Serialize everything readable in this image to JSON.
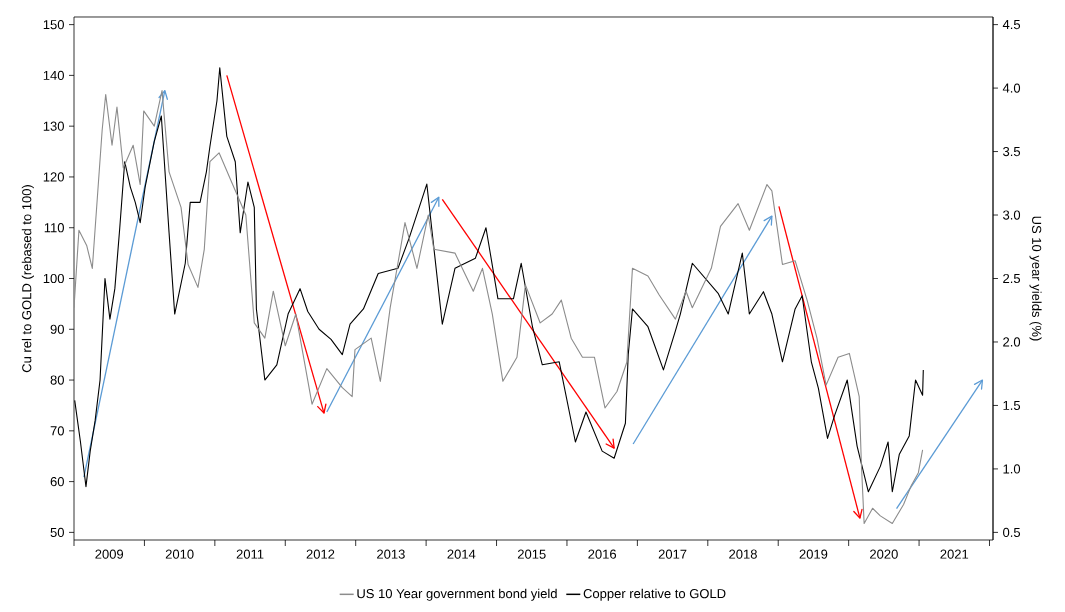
{
  "chart_data": {
    "type": "line",
    "xlabel": null,
    "ylabel": "Cu rel to GOLD (rebased to 100)",
    "y2label": "US 10 year yields (%)",
    "legend": "bottom",
    "xlim": [
      2009,
      2022.05
    ],
    "xticks": [
      {
        "value": 2009,
        "label": null
      },
      {
        "value": 2009.5,
        "label": "2009"
      },
      {
        "value": 2010,
        "label": null
      },
      {
        "value": 2010.5,
        "label": "2010"
      },
      {
        "value": 2011,
        "label": null
      },
      {
        "value": 2011.5,
        "label": "2011"
      },
      {
        "value": 2012,
        "label": null
      },
      {
        "value": 2012.5,
        "label": "2012"
      },
      {
        "value": 2013,
        "label": null
      },
      {
        "value": 2013.5,
        "label": "2013"
      },
      {
        "value": 2014,
        "label": null
      },
      {
        "value": 2014.5,
        "label": "2014"
      },
      {
        "value": 2015,
        "label": null
      },
      {
        "value": 2015.5,
        "label": "2015"
      },
      {
        "value": 2016,
        "label": null
      },
      {
        "value": 2016.5,
        "label": "2016"
      },
      {
        "value": 2017,
        "label": null
      },
      {
        "value": 2017.5,
        "label": "2017"
      },
      {
        "value": 2018,
        "label": null
      },
      {
        "value": 2018.5,
        "label": "2018"
      },
      {
        "value": 2019,
        "label": null
      },
      {
        "value": 2019.5,
        "label": "2019"
      },
      {
        "value": 2020,
        "label": null
      },
      {
        "value": 2020.5,
        "label": "2020"
      },
      {
        "value": 2021,
        "label": null
      },
      {
        "value": 2021.5,
        "label": "2021"
      },
      {
        "value": 2022,
        "label": null
      }
    ],
    "ylim": [
      48.5,
      151.5
    ],
    "yticks": [
      50,
      60,
      70,
      80,
      90,
      100,
      110,
      120,
      130,
      140,
      150
    ],
    "y2lim": [
      0.44,
      4.56
    ],
    "y2ticks": [
      0.5,
      {
        "value": 1,
        "label": "1.0"
      },
      1.5,
      {
        "value": 2,
        "label": "2.0"
      },
      2.5,
      {
        "value": 3,
        "label": "3.0"
      },
      3.5,
      {
        "value": 4,
        "label": "4.0"
      },
      4.5
    ],
    "series": [
      {
        "name": "US 10 Year government bond yield",
        "color": "#8c8c8c",
        "axis": "y2",
        "x": [
          2009.0,
          2009.07,
          2009.18,
          2009.26,
          2009.4,
          2009.45,
          2009.54,
          2009.61,
          2009.7,
          2009.84,
          2009.94,
          2009.99,
          2010.14,
          2010.25,
          2010.35,
          2010.52,
          2010.62,
          2010.76,
          2010.85,
          2010.93,
          2011.06,
          2011.23,
          2011.44,
          2011.56,
          2011.71,
          2011.83,
          2012.0,
          2012.15,
          2012.38,
          2012.59,
          2012.81,
          2012.95,
          2012.99,
          2013.22,
          2013.35,
          2013.49,
          2013.7,
          2013.87,
          2014.03,
          2014.11,
          2014.41,
          2014.67,
          2014.8,
          2014.94,
          2015.09,
          2015.29,
          2015.41,
          2015.62,
          2015.79,
          2015.92,
          2016.06,
          2016.22,
          2016.39,
          2016.54,
          2016.71,
          2016.85,
          2016.93,
          2017.15,
          2017.31,
          2017.54,
          2017.69,
          2017.78,
          2018.05,
          2018.18,
          2018.43,
          2018.59,
          2018.84,
          2018.91,
          2019.06,
          2019.24,
          2019.41,
          2019.55,
          2019.68,
          2019.85,
          2020.01,
          2020.15,
          2020.18,
          2020.22,
          2020.34,
          2020.45,
          2020.62,
          2020.78,
          2020.89,
          2020.99,
          2021.05
        ],
        "values": [
          2.27,
          2.88,
          2.76,
          2.58,
          3.67,
          3.95,
          3.55,
          3.85,
          3.37,
          3.55,
          3.24,
          3.82,
          3.7,
          3.98,
          3.34,
          3.06,
          2.61,
          2.43,
          2.73,
          3.42,
          3.49,
          3.27,
          3.0,
          2.15,
          2.03,
          2.4,
          1.97,
          2.22,
          1.51,
          1.79,
          1.64,
          1.57,
          1.94,
          2.03,
          1.69,
          2.27,
          2.94,
          2.58,
          3.0,
          2.73,
          2.7,
          2.4,
          2.58,
          2.22,
          1.69,
          1.88,
          2.45,
          2.15,
          2.22,
          2.33,
          2.03,
          1.88,
          1.88,
          1.48,
          1.61,
          1.84,
          2.58,
          2.52,
          2.37,
          2.18,
          2.4,
          2.27,
          2.58,
          2.91,
          3.09,
          2.88,
          3.24,
          3.19,
          2.61,
          2.64,
          2.33,
          2.03,
          1.66,
          1.88,
          1.91,
          1.57,
          1.05,
          0.57,
          0.69,
          0.63,
          0.57,
          0.72,
          0.87,
          0.97,
          1.15
        ]
      },
      {
        "name": "Copper relative to GOLD",
        "color": "#000000",
        "x": [
          2009.01,
          2009.09,
          2009.17,
          2009.23,
          2009.3,
          2009.37,
          2009.44,
          2009.51,
          2009.58,
          2009.65,
          2009.72,
          2009.8,
          2009.87,
          2009.94,
          2010.01,
          2010.14,
          2010.24,
          2010.35,
          2010.43,
          2010.58,
          2010.65,
          2010.79,
          2010.88,
          2010.93,
          2011.03,
          2011.07,
          2011.17,
          2011.29,
          2011.36,
          2011.47,
          2011.56,
          2011.59,
          2011.71,
          2011.88,
          2012.04,
          2012.21,
          2012.32,
          2012.48,
          2012.65,
          2012.81,
          2012.92,
          2013.11,
          2013.32,
          2013.6,
          2013.76,
          2014.01,
          2014.23,
          2014.41,
          2014.7,
          2014.85,
          2015.02,
          2015.24,
          2015.35,
          2015.51,
          2015.65,
          2015.89,
          2016.12,
          2016.27,
          2016.5,
          2016.67,
          2016.83,
          2016.87,
          2016.93,
          2017.15,
          2017.37,
          2017.54,
          2017.61,
          2017.78,
          2018.15,
          2018.29,
          2018.49,
          2018.59,
          2018.79,
          2018.91,
          2019.06,
          2019.24,
          2019.34,
          2019.47,
          2019.57,
          2019.7,
          2019.8,
          2019.98,
          2020.12,
          2020.28,
          2020.45,
          2020.56,
          2020.62,
          2020.72,
          2020.86,
          2020.95,
          2021.05,
          2021.06
        ],
        "values": [
          76,
          68,
          59,
          66,
          72,
          80,
          100,
          92,
          98,
          110,
          123,
          118,
          115,
          111,
          118,
          127,
          132,
          109,
          93,
          103,
          115,
          115,
          121,
          126,
          135,
          141.5,
          128,
          123,
          109,
          119,
          114,
          94,
          80,
          83,
          93,
          98,
          93.5,
          90,
          88,
          85,
          91,
          94,
          101,
          102,
          108,
          118.6,
          91,
          102,
          104,
          110,
          96,
          96,
          103,
          90.5,
          83,
          83.6,
          67.8,
          73.7,
          66,
          64.6,
          71.5,
          85,
          94,
          90.5,
          82,
          89.7,
          93,
          103,
          97,
          93,
          105,
          93,
          97.4,
          93,
          83.6,
          94,
          96.6,
          83.6,
          78.4,
          68.5,
          73,
          80,
          67,
          58,
          63,
          67.8,
          58,
          65.4,
          69,
          80,
          77,
          82
        ]
      }
    ]
  }
}
